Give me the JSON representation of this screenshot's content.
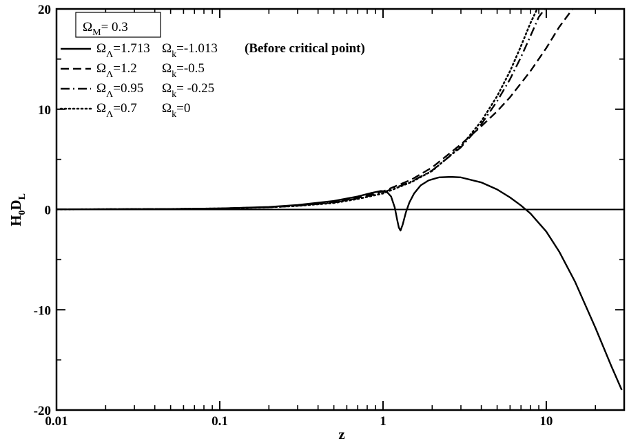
{
  "chart_data": {
    "type": "line",
    "xscale": "log",
    "xlim": [
      0.01,
      30
    ],
    "ylim": [
      -20,
      20
    ],
    "xlabel": "z",
    "ylabel": {
      "main": "H",
      "sub1": "0",
      "mid": "D",
      "sub2": "L"
    },
    "xticks": [
      0.01,
      0.1,
      1,
      10
    ],
    "xtick_labels": [
      "0.01",
      "0.1",
      "1",
      "10"
    ],
    "yticks": [
      -20,
      -10,
      0,
      10,
      20
    ],
    "ytick_labels": [
      "-20",
      "-10",
      "0",
      "10",
      "20"
    ],
    "legend_box": {
      "omega": "Ω",
      "sub": "M",
      "text": "= 0.3"
    },
    "legend_placement": "top-left",
    "zero_line": true,
    "series": [
      {
        "style": "solid",
        "label": {
          "lambda_value": "=1.713",
          "k_value": "=-1.013",
          "note": "(Before critical point)"
        },
        "x": [
          0.01,
          0.05,
          0.1,
          0.2,
          0.3,
          0.5,
          0.7,
          0.85,
          0.97,
          1.05,
          1.12,
          1.18,
          1.22,
          1.25,
          1.28,
          1.32,
          1.38,
          1.45,
          1.55,
          1.7,
          1.9,
          2.2,
          2.6,
          3.0,
          4.0,
          5.0,
          6.0,
          7.0,
          8.0,
          10.0,
          12.0,
          15.0,
          20.0,
          25.0,
          29.0
        ],
        "y": [
          0.01,
          0.05,
          0.11,
          0.25,
          0.45,
          0.85,
          1.3,
          1.65,
          1.85,
          1.8,
          1.3,
          0.2,
          -1.0,
          -1.8,
          -2.1,
          -1.5,
          -0.3,
          0.7,
          1.6,
          2.4,
          2.9,
          3.2,
          3.25,
          3.2,
          2.7,
          2.0,
          1.2,
          0.4,
          -0.4,
          -2.2,
          -4.2,
          -7.2,
          -11.8,
          -15.6,
          -18.0
        ]
      },
      {
        "style": "dashed",
        "label": {
          "lambda_value": "=1.2",
          "k_value": "=-0.5",
          "note": ""
        },
        "x": [
          0.01,
          0.05,
          0.1,
          0.2,
          0.3,
          0.5,
          0.7,
          1.0,
          1.5,
          2.0,
          3.0,
          4.0,
          5.0,
          6.0,
          8.0,
          10.0,
          12.0,
          14.5
        ],
        "y": [
          0.01,
          0.05,
          0.1,
          0.23,
          0.4,
          0.75,
          1.15,
          1.8,
          3.0,
          4.2,
          6.5,
          8.3,
          9.8,
          11.2,
          13.8,
          16.1,
          18.2,
          20.0
        ]
      },
      {
        "style": "dash-dot",
        "label": {
          "lambda_value": "=0.95",
          "k_value": "= -0.25",
          "note": ""
        },
        "x": [
          0.01,
          0.05,
          0.1,
          0.2,
          0.3,
          0.5,
          0.7,
          1.0,
          1.5,
          2.0,
          3.0,
          4.0,
          5.0,
          6.0,
          7.0,
          8.0,
          9.0,
          9.8
        ],
        "y": [
          0.01,
          0.05,
          0.1,
          0.22,
          0.37,
          0.7,
          1.1,
          1.7,
          2.8,
          3.9,
          6.2,
          8.5,
          10.8,
          13.0,
          15.2,
          17.3,
          19.2,
          20.0
        ]
      },
      {
        "style": "dotted",
        "label": {
          "lambda_value": "=0.7",
          "k_value": "=0",
          "note": ""
        },
        "x": [
          0.01,
          0.05,
          0.1,
          0.2,
          0.3,
          0.5,
          0.7,
          1.0,
          1.5,
          2.0,
          3.0,
          4.0,
          5.0,
          6.0,
          7.0,
          8.0,
          8.8
        ],
        "y": [
          0.01,
          0.05,
          0.1,
          0.22,
          0.36,
          0.65,
          1.05,
          1.6,
          2.75,
          3.85,
          6.3,
          8.8,
          11.3,
          13.8,
          16.3,
          18.6,
          20.0
        ]
      }
    ]
  }
}
